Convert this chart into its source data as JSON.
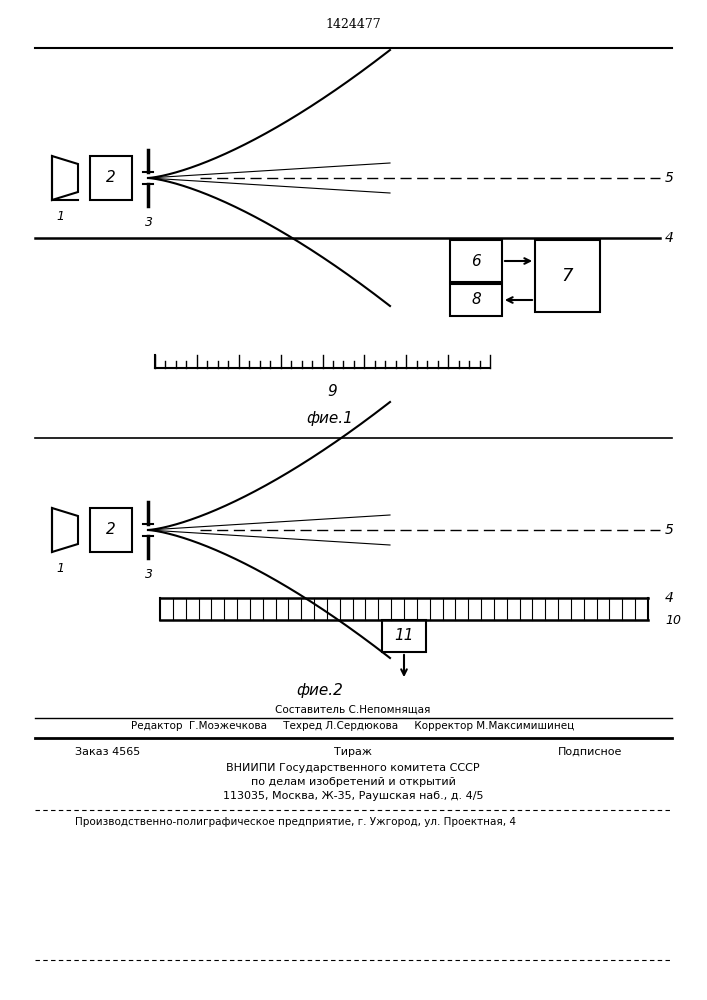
{
  "title": "1424477",
  "bg_color": "#ffffff",
  "fig_width": 7.07,
  "fig_height": 10.0,
  "dpi": 100,
  "footer_lines": [
    "Составитель С.Непомнящая",
    "Редактор  Г.Моэжечкова     Техред Л.Сердюкова     Корректор М.Максимишинец",
    "Заказ 4565",
    "Тираж",
    "Подписное",
    "ВНИИПИ Государственного комитета СССР",
    "по делам изобретений и открытий",
    "113035, Москва, Ж-35, Раушская наб., д. 4/5",
    "Производственно-полиграфическое предприятие, г. Ужгород, ул. Проектная, 4"
  ]
}
